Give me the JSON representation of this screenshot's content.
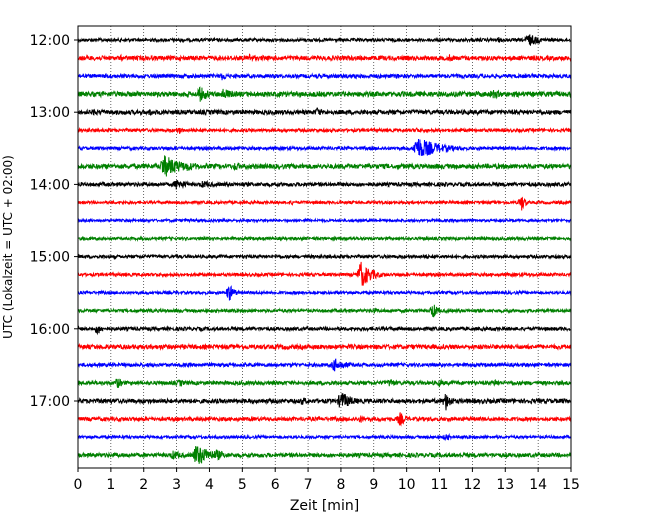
{
  "chart_data": {
    "type": "line",
    "xlabel": "Zeit  [min]",
    "ylabel": "UTC (Lokalzeit = UTC + 02:00)",
    "xlim": [
      0,
      15
    ],
    "x_ticks": [
      "0",
      "1",
      "2",
      "3",
      "4",
      "5",
      "6",
      "7",
      "8",
      "9",
      "10",
      "11",
      "12",
      "13",
      "14",
      "15"
    ],
    "y_ticks": [
      "12:00",
      "13:00",
      "14:00",
      "15:00",
      "16:00",
      "17:00"
    ],
    "grid_x": true,
    "trace_interval_min": 15,
    "first_trace": "12:00",
    "colors_cycle": [
      "#000000",
      "#ff0000",
      "#0000ff",
      "#008000"
    ],
    "traces": [
      {
        "start": "12:00",
        "color": "#000000",
        "noise": 1.0,
        "events": [
          {
            "t": 13.7,
            "amp": 7,
            "dur": 0.6
          },
          {
            "t": 12.8,
            "amp": 3,
            "dur": 0.5
          }
        ]
      },
      {
        "start": "12:15",
        "color": "#ff0000",
        "noise": 1.4,
        "events": [
          {
            "t": 5.2,
            "amp": 5,
            "dur": 0.4
          },
          {
            "t": 11.3,
            "amp": 4,
            "dur": 0.5
          },
          {
            "t": 1.3,
            "amp": 3,
            "dur": 0.4
          }
        ]
      },
      {
        "start": "12:30",
        "color": "#0000ff",
        "noise": 1.2,
        "events": [
          {
            "t": 4.4,
            "amp": 5,
            "dur": 0.3
          },
          {
            "t": 9.7,
            "amp": 3,
            "dur": 0.4
          }
        ]
      },
      {
        "start": "12:45",
        "color": "#008000",
        "noise": 1.6,
        "events": [
          {
            "t": 3.7,
            "amp": 8,
            "dur": 0.6
          },
          {
            "t": 4.4,
            "amp": 6,
            "dur": 0.8
          },
          {
            "t": 12.6,
            "amp": 5,
            "dur": 0.8
          }
        ]
      },
      {
        "start": "13:00",
        "color": "#000000",
        "noise": 1.4,
        "events": [
          {
            "t": 7.3,
            "amp": 6,
            "dur": 0.2
          },
          {
            "t": 0.5,
            "amp": 4,
            "dur": 0.4
          },
          {
            "t": 2.2,
            "amp": 4,
            "dur": 0.3
          }
        ]
      },
      {
        "start": "13:15",
        "color": "#ff0000",
        "noise": 1.0,
        "events": [
          {
            "t": 3.1,
            "amp": 4,
            "dur": 0.2
          },
          {
            "t": 10.3,
            "amp": 3,
            "dur": 0.4
          }
        ]
      },
      {
        "start": "13:30",
        "color": "#0000ff",
        "noise": 1.0,
        "events": [
          {
            "t": 10.3,
            "amp": 12,
            "dur": 1.2
          }
        ]
      },
      {
        "start": "13:45",
        "color": "#008000",
        "noise": 1.5,
        "events": [
          {
            "t": 2.6,
            "amp": 12,
            "dur": 1.0
          },
          {
            "t": 3.3,
            "amp": 5,
            "dur": 1.0
          },
          {
            "t": 4.8,
            "amp": 5,
            "dur": 0.4
          }
        ]
      },
      {
        "start": "14:00",
        "color": "#000000",
        "noise": 1.2,
        "events": [
          {
            "t": 3.0,
            "amp": 6,
            "dur": 0.6
          },
          {
            "t": 3.8,
            "amp": 4,
            "dur": 0.8
          }
        ]
      },
      {
        "start": "14:15",
        "color": "#ff0000",
        "noise": 0.9,
        "events": [
          {
            "t": 13.5,
            "amp": 9,
            "dur": 0.2
          },
          {
            "t": 6.5,
            "amp": 2.5,
            "dur": 0.3
          }
        ]
      },
      {
        "start": "14:30",
        "color": "#0000ff",
        "noise": 0.8,
        "events": []
      },
      {
        "start": "14:45",
        "color": "#008000",
        "noise": 0.9,
        "events": []
      },
      {
        "start": "15:00",
        "color": "#000000",
        "noise": 1.0,
        "events": [
          {
            "t": 10.6,
            "amp": 2.5,
            "dur": 0.3
          }
        ]
      },
      {
        "start": "15:15",
        "color": "#ff0000",
        "noise": 1.0,
        "events": [
          {
            "t": 8.6,
            "amp": 14,
            "dur": 0.6
          }
        ]
      },
      {
        "start": "15:30",
        "color": "#0000ff",
        "noise": 0.9,
        "events": [
          {
            "t": 4.6,
            "amp": 9,
            "dur": 0.3
          }
        ]
      },
      {
        "start": "15:45",
        "color": "#008000",
        "noise": 1.0,
        "events": [
          {
            "t": 10.8,
            "amp": 8,
            "dur": 0.3
          },
          {
            "t": 9.0,
            "amp": 3,
            "dur": 0.3
          }
        ]
      },
      {
        "start": "16:00",
        "color": "#000000",
        "noise": 1.1,
        "events": [
          {
            "t": 0.6,
            "amp": 6,
            "dur": 0.3
          }
        ]
      },
      {
        "start": "16:15",
        "color": "#ff0000",
        "noise": 1.4,
        "events": [
          {
            "t": 5.0,
            "amp": 3,
            "dur": 0.3
          },
          {
            "t": 2.5,
            "amp": 3,
            "dur": 0.3
          }
        ]
      },
      {
        "start": "16:30",
        "color": "#0000ff",
        "noise": 1.1,
        "events": [
          {
            "t": 7.8,
            "amp": 7,
            "dur": 0.7
          }
        ]
      },
      {
        "start": "16:45",
        "color": "#008000",
        "noise": 1.2,
        "events": [
          {
            "t": 1.2,
            "amp": 6,
            "dur": 0.3
          },
          {
            "t": 3.1,
            "amp": 4,
            "dur": 0.3
          },
          {
            "t": 9.5,
            "amp": 5,
            "dur": 0.4
          },
          {
            "t": 12.7,
            "amp": 4,
            "dur": 0.3
          },
          {
            "t": 11.0,
            "amp": 4,
            "dur": 0.3
          }
        ]
      },
      {
        "start": "17:00",
        "color": "#000000",
        "noise": 1.4,
        "events": [
          {
            "t": 8.0,
            "amp": 10,
            "dur": 0.6
          },
          {
            "t": 11.2,
            "amp": 10,
            "dur": 0.3
          },
          {
            "t": 6.8,
            "amp": 4,
            "dur": 0.8
          },
          {
            "t": 4.0,
            "amp": 3,
            "dur": 0.3
          }
        ]
      },
      {
        "start": "17:15",
        "color": "#ff0000",
        "noise": 1.2,
        "events": [
          {
            "t": 9.8,
            "amp": 7,
            "dur": 0.4
          },
          {
            "t": 8.6,
            "amp": 4,
            "dur": 0.5
          }
        ]
      },
      {
        "start": "17:30",
        "color": "#0000ff",
        "noise": 0.9,
        "events": [
          {
            "t": 11.2,
            "amp": 4,
            "dur": 0.3
          }
        ]
      },
      {
        "start": "17:45",
        "color": "#008000",
        "noise": 1.3,
        "events": [
          {
            "t": 3.6,
            "amp": 12,
            "dur": 0.8
          },
          {
            "t": 2.9,
            "amp": 5,
            "dur": 0.6
          },
          {
            "t": 4.2,
            "amp": 6,
            "dur": 0.6
          }
        ]
      }
    ]
  }
}
